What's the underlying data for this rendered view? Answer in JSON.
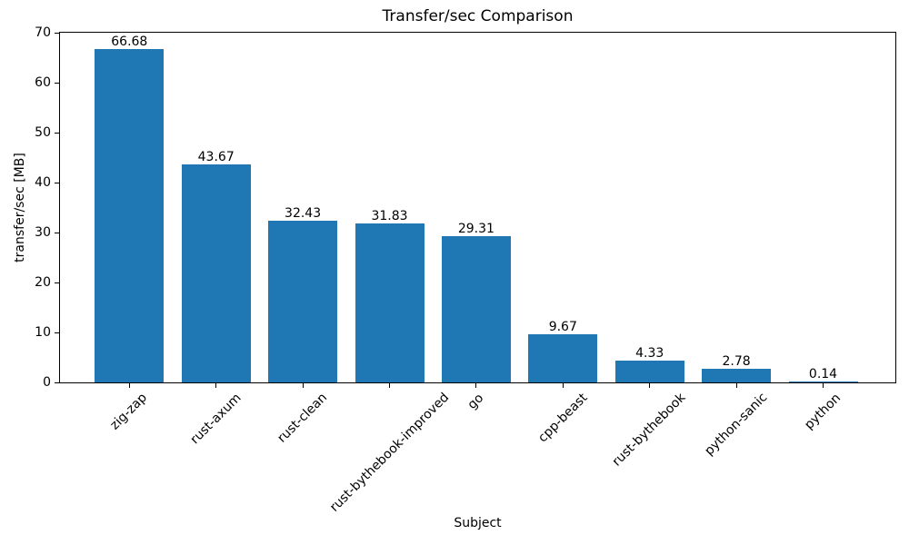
{
  "figure": {
    "background": "#ffffff"
  },
  "chart_data": {
    "type": "bar",
    "title": "Transfer/sec Comparison",
    "xlabel": "Subject",
    "ylabel": "transfer/sec [MB]",
    "categories": [
      "zig-zap",
      "rust-axum",
      "rust-clean",
      "rust-bythebook-improved",
      "go",
      "cpp-beast",
      "rust-bythebook",
      "python-sanic",
      "python"
    ],
    "values": [
      66.68,
      43.67,
      32.43,
      31.83,
      29.31,
      9.67,
      4.33,
      2.78,
      0.14
    ],
    "value_labels": [
      "66.68",
      "43.67",
      "32.43",
      "31.83",
      "29.31",
      "9.67",
      "4.33",
      "2.78",
      "0.14"
    ],
    "ylim": [
      0,
      70
    ],
    "yticks": [
      0,
      10,
      20,
      30,
      40,
      50,
      60,
      70
    ],
    "bar_color": "#1f77b4",
    "text_color": "#000000",
    "grid": false,
    "legend": null,
    "xtick_rotation_deg": 45
  }
}
